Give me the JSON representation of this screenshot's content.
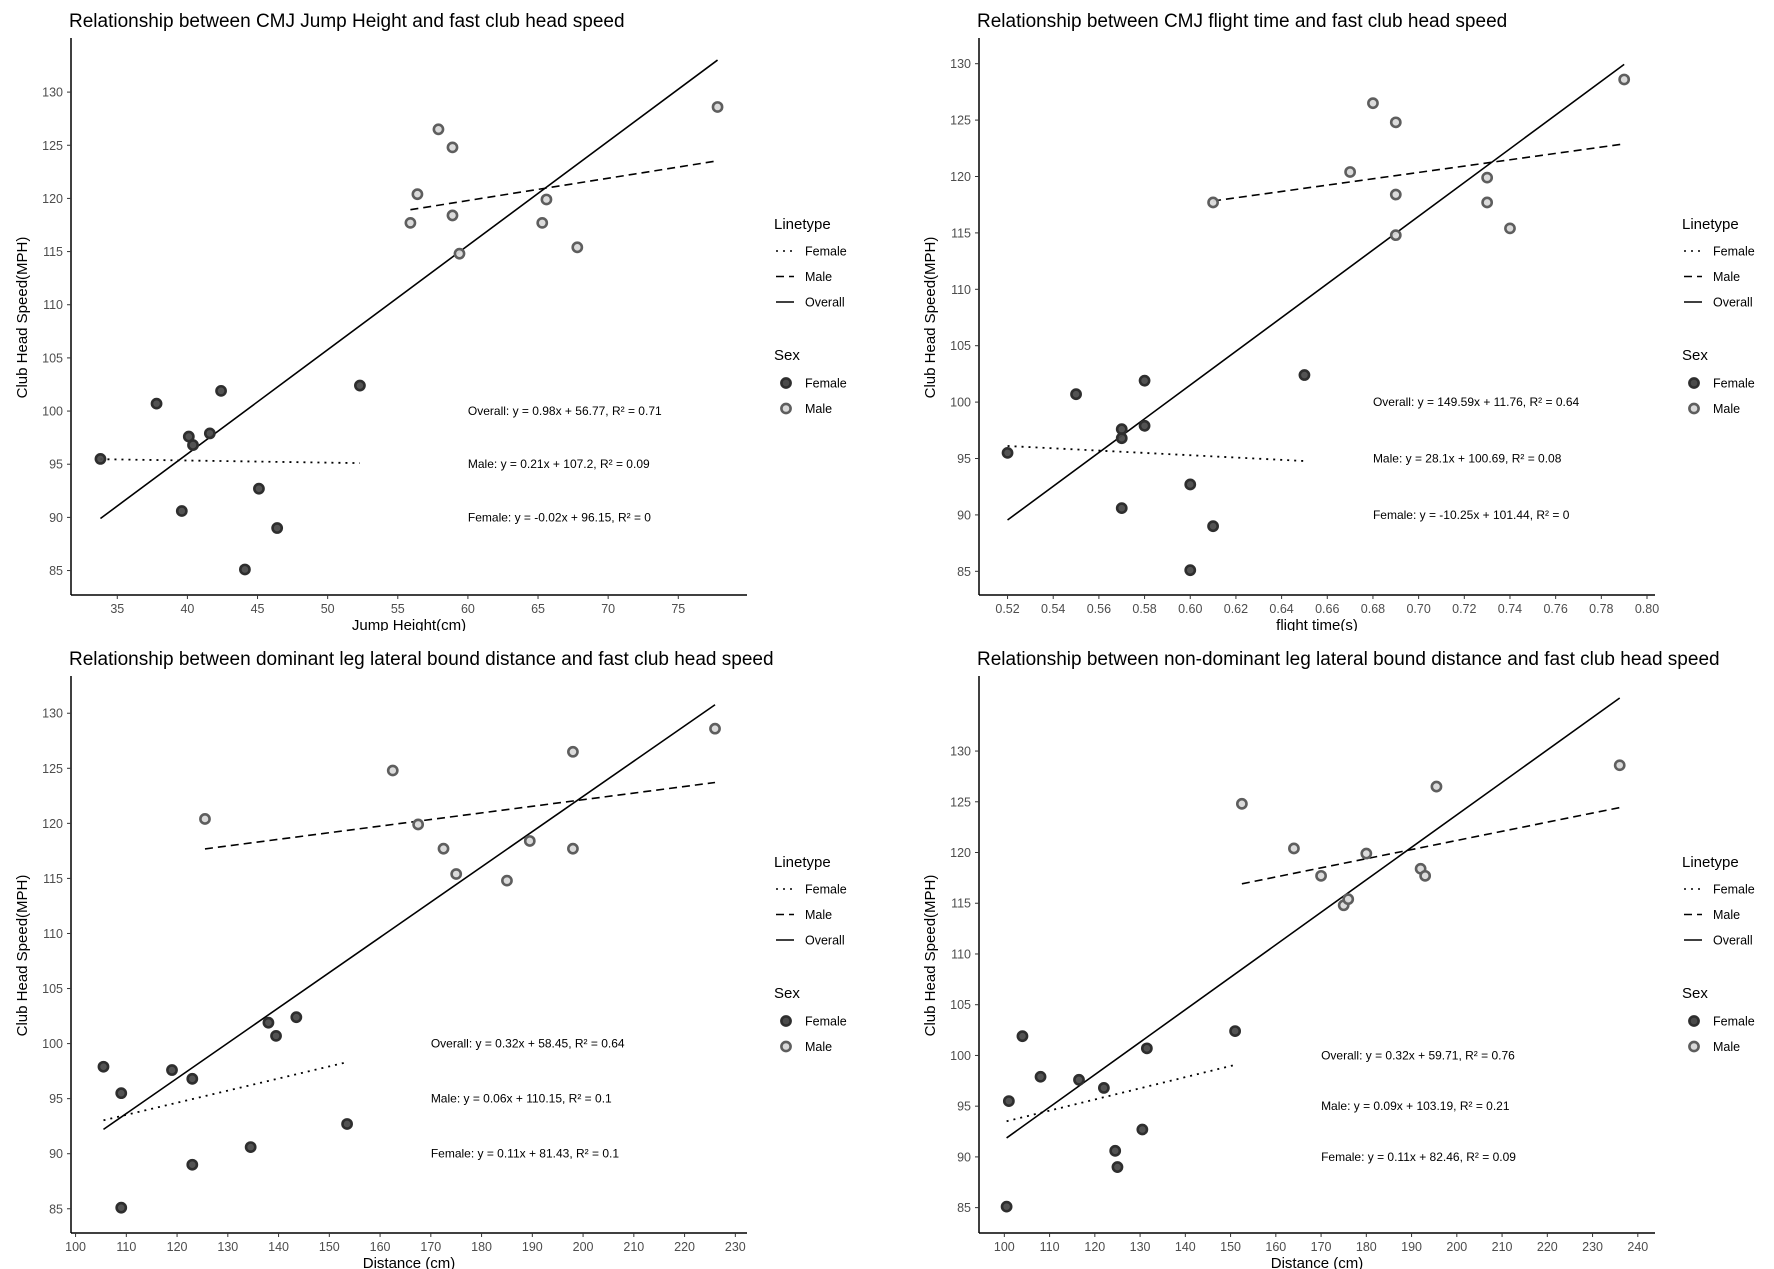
{
  "legend": {
    "linetype_title": "Linetype",
    "linetype_items": [
      "Female",
      "Male",
      "Overall"
    ],
    "sex_title": "Sex",
    "sex_items": [
      "Female",
      "Male"
    ]
  },
  "colors": {
    "female_fill": "#4a4a4a",
    "female_stroke": "#2e2e2e",
    "male_fill": "#d9d9d9",
    "male_stroke": "#5e5e5e",
    "line": "#000000",
    "tick_text": "#4d4d4d"
  },
  "chart_data": [
    {
      "type": "scatter",
      "title": "Relationship between CMJ Jump Height and fast club head speed",
      "xlabel": "Jump Height(cm)",
      "ylabel": "Club Head Speed(MPH)",
      "xlim": [
        31.7,
        79.9
      ],
      "ylim": [
        82.7,
        134.9
      ],
      "xticks": [
        35,
        40,
        45,
        50,
        55,
        60,
        65,
        70,
        75
      ],
      "yticks": [
        85,
        90,
        95,
        100,
        105,
        110,
        115,
        120,
        125,
        130
      ],
      "series": [
        {
          "name": "Female",
          "points": [
            [
              33.8,
              95.5
            ],
            [
              37.8,
              100.7
            ],
            [
              39.6,
              90.6
            ],
            [
              40.1,
              97.6
            ],
            [
              40.4,
              96.8
            ],
            [
              41.6,
              97.9
            ],
            [
              42.4,
              101.9
            ],
            [
              44.1,
              85.1
            ],
            [
              45.1,
              92.7
            ],
            [
              46.4,
              89.0
            ],
            [
              52.3,
              102.4
            ]
          ]
        },
        {
          "name": "Male",
          "points": [
            [
              55.9,
              117.7
            ],
            [
              56.4,
              120.4
            ],
            [
              57.9,
              126.5
            ],
            [
              58.9,
              124.8
            ],
            [
              58.9,
              118.4
            ],
            [
              59.4,
              114.8
            ],
            [
              65.3,
              117.7
            ],
            [
              65.6,
              119.9
            ],
            [
              67.8,
              115.4
            ],
            [
              77.8,
              128.6
            ]
          ]
        }
      ],
      "fits": [
        {
          "name": "Overall",
          "slope": 0.98,
          "intercept": 56.77,
          "r2": 0.71,
          "xrange": [
            33.8,
            77.8
          ],
          "label": "Overall: y = 0.98x + 56.77, R² = 0.71"
        },
        {
          "name": "Male",
          "slope": 0.21,
          "intercept": 107.2,
          "r2": 0.09,
          "xrange": [
            55.9,
            77.8
          ],
          "label": "Male: y = 0.21x + 107.2, R² = 0.09"
        },
        {
          "name": "Female",
          "slope": -0.02,
          "intercept": 96.15,
          "r2": 0,
          "xrange": [
            33.8,
            52.3
          ],
          "label": "Female: y = -0.02x + 96.15, R² = 0"
        }
      ],
      "annotation_x": 60,
      "annotation_y": [
        100,
        95,
        90
      ]
    },
    {
      "type": "scatter",
      "title": "Relationship between CMJ flight time and fast club head speed",
      "xlabel": "flight time(s)",
      "ylabel": "Club Head Speed(MPH)",
      "xlim": [
        0.5075,
        0.8035
      ],
      "ylim": [
        82.9,
        132.1
      ],
      "xticks": [
        0.52,
        0.54,
        0.56,
        0.58,
        0.6,
        0.62,
        0.64,
        0.66,
        0.68,
        0.7,
        0.72,
        0.74,
        0.76,
        0.78,
        0.8
      ],
      "yticks": [
        85,
        90,
        95,
        100,
        105,
        110,
        115,
        120,
        125,
        130
      ],
      "series": [
        {
          "name": "Female",
          "points": [
            [
              0.52,
              95.5
            ],
            [
              0.55,
              100.7
            ],
            [
              0.57,
              97.6
            ],
            [
              0.57,
              96.8
            ],
            [
              0.57,
              90.6
            ],
            [
              0.58,
              97.9
            ],
            [
              0.58,
              101.9
            ],
            [
              0.6,
              92.7
            ],
            [
              0.6,
              85.1
            ],
            [
              0.61,
              89.0
            ],
            [
              0.65,
              102.4
            ]
          ]
        },
        {
          "name": "Male",
          "points": [
            [
              0.61,
              117.7
            ],
            [
              0.67,
              120.4
            ],
            [
              0.68,
              126.5
            ],
            [
              0.69,
              124.8
            ],
            [
              0.69,
              118.4
            ],
            [
              0.69,
              114.8
            ],
            [
              0.73,
              119.9
            ],
            [
              0.73,
              117.7
            ],
            [
              0.74,
              115.4
            ],
            [
              0.79,
              128.6
            ]
          ]
        }
      ],
      "fits": [
        {
          "name": "Overall",
          "slope": 149.59,
          "intercept": 11.76,
          "r2": 0.64,
          "xrange": [
            0.52,
            0.79
          ],
          "label": "Overall: y = 149.59x + 11.76, R² = 0.64"
        },
        {
          "name": "Male",
          "slope": 28.1,
          "intercept": 100.69,
          "r2": 0.08,
          "xrange": [
            0.61,
            0.79
          ],
          "label": "Male: y = 28.1x + 100.69, R² = 0.08"
        },
        {
          "name": "Female",
          "slope": -10.25,
          "intercept": 101.44,
          "r2": 0,
          "xrange": [
            0.52,
            0.65
          ],
          "label": "Female: y = -10.25x + 101.44, R² = 0"
        }
      ],
      "annotation_x": 0.68,
      "annotation_y": [
        100,
        95,
        90
      ]
    },
    {
      "type": "scatter",
      "title": "Relationship between dominant leg lateral bound distance and fast club head speed",
      "xlabel": "Distance (cm)",
      "ylabel": "Club Head Speed(MPH)",
      "xlim": [
        99.1,
        232.3
      ],
      "ylim": [
        82.8,
        133.2
      ],
      "xticks": [
        100,
        110,
        120,
        130,
        140,
        150,
        160,
        170,
        180,
        190,
        200,
        210,
        220,
        230
      ],
      "yticks": [
        85,
        90,
        95,
        100,
        105,
        110,
        115,
        120,
        125,
        130
      ],
      "series": [
        {
          "name": "Female",
          "points": [
            [
              105.5,
              97.9
            ],
            [
              109,
              95.5
            ],
            [
              109,
              85.1
            ],
            [
              119,
              97.6
            ],
            [
              123,
              96.8
            ],
            [
              123,
              89.0
            ],
            [
              134.5,
              90.6
            ],
            [
              138,
              101.9
            ],
            [
              139.5,
              100.7
            ],
            [
              143.5,
              102.4
            ],
            [
              153.5,
              92.7
            ]
          ]
        },
        {
          "name": "Male",
          "points": [
            [
              125.5,
              120.4
            ],
            [
              162.5,
              124.8
            ],
            [
              167.5,
              119.9
            ],
            [
              172.5,
              117.7
            ],
            [
              175,
              115.4
            ],
            [
              185,
              114.8
            ],
            [
              189.5,
              118.4
            ],
            [
              198,
              126.5
            ],
            [
              198,
              117.7
            ],
            [
              226,
              128.6
            ]
          ]
        }
      ],
      "fits": [
        {
          "name": "Overall",
          "slope": 0.32,
          "intercept": 58.45,
          "r2": 0.64,
          "xrange": [
            105.5,
            226
          ],
          "label": "Overall: y = 0.32x + 58.45, R² = 0.64"
        },
        {
          "name": "Male",
          "slope": 0.06,
          "intercept": 110.15,
          "r2": 0.1,
          "xrange": [
            125.5,
            226
          ],
          "label": "Male: y = 0.06x + 110.15, R² = 0.1"
        },
        {
          "name": "Female",
          "slope": 0.11,
          "intercept": 81.43,
          "r2": 0.1,
          "xrange": [
            105.5,
            153.5
          ],
          "label": "Female: y = 0.11x + 81.43, R² = 0.1"
        }
      ],
      "annotation_x": 170,
      "annotation_y": [
        100,
        95,
        90
      ]
    },
    {
      "type": "scatter",
      "title": "Relationship between non-dominant leg lateral bound distance and fast club head speed",
      "xlabel": "Distance (cm)",
      "ylabel": "Club Head Speed(MPH)",
      "xlim": [
        94.4,
        243.8
      ],
      "ylim": [
        82.5,
        137.2
      ],
      "xticks": [
        100,
        110,
        120,
        130,
        140,
        150,
        160,
        170,
        180,
        190,
        200,
        210,
        220,
        230,
        240
      ],
      "yticks": [
        85,
        90,
        95,
        100,
        105,
        110,
        115,
        120,
        125,
        130
      ],
      "series": [
        {
          "name": "Female",
          "points": [
            [
              100.5,
              85.1
            ],
            [
              101,
              95.5
            ],
            [
              104,
              101.9
            ],
            [
              108,
              97.9
            ],
            [
              116.5,
              97.6
            ],
            [
              122,
              96.8
            ],
            [
              124.5,
              90.6
            ],
            [
              125,
              89.0
            ],
            [
              130.5,
              92.7
            ],
            [
              131.5,
              100.7
            ],
            [
              151,
              102.4
            ]
          ]
        },
        {
          "name": "Male",
          "points": [
            [
              152.5,
              124.8
            ],
            [
              164,
              120.4
            ],
            [
              170,
              117.7
            ],
            [
              175,
              114.8
            ],
            [
              176,
              115.4
            ],
            [
              180,
              119.9
            ],
            [
              192,
              118.4
            ],
            [
              193,
              117.7
            ],
            [
              195.5,
              126.5
            ],
            [
              236,
              128.6
            ]
          ]
        }
      ],
      "fits": [
        {
          "name": "Overall",
          "slope": 0.32,
          "intercept": 59.71,
          "r2": 0.76,
          "xrange": [
            100.5,
            236
          ],
          "label": "Overall: y = 0.32x + 59.71, R² = 0.76"
        },
        {
          "name": "Male",
          "slope": 0.09,
          "intercept": 103.19,
          "r2": 0.21,
          "xrange": [
            152.5,
            236
          ],
          "label": "Male: y = 0.09x + 103.19, R² = 0.21"
        },
        {
          "name": "Female",
          "slope": 0.11,
          "intercept": 82.46,
          "r2": 0.09,
          "xrange": [
            100.5,
            151
          ],
          "label": "Female: y = 0.11x + 82.46, R² = 0.09"
        }
      ],
      "annotation_x": 170,
      "annotation_y": [
        100,
        95,
        90
      ]
    }
  ]
}
